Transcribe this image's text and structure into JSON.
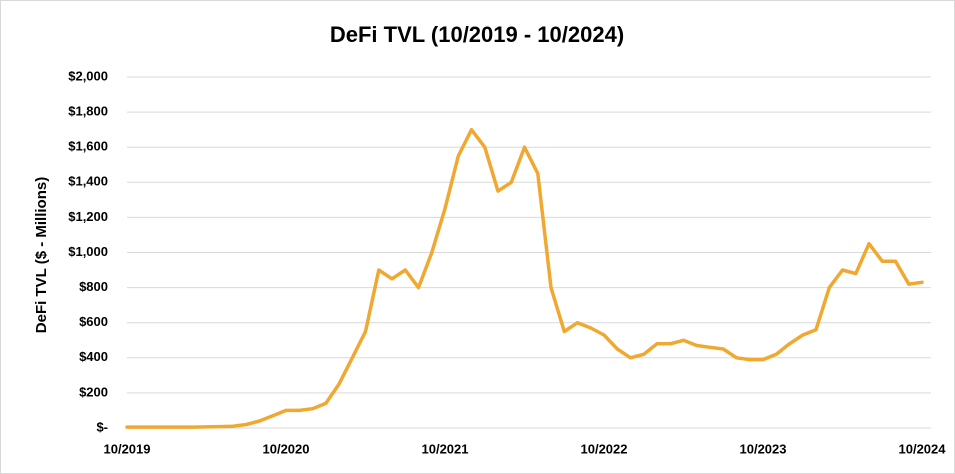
{
  "chart_data": {
    "type": "line",
    "title": "DeFi TVL (10/2019 - 10/2024)",
    "y_label": "DeFi TVL ($ - Millions)",
    "categories": [
      "10/2019",
      null,
      null,
      null,
      null,
      null,
      null,
      null,
      null,
      null,
      null,
      null,
      "10/2020",
      null,
      null,
      null,
      null,
      null,
      null,
      null,
      null,
      null,
      null,
      null,
      "10/2021",
      null,
      null,
      null,
      null,
      null,
      null,
      null,
      null,
      null,
      null,
      null,
      "10/2022",
      null,
      null,
      null,
      null,
      null,
      null,
      null,
      null,
      null,
      null,
      null,
      "10/2023",
      null,
      null,
      null,
      null,
      null,
      null,
      null,
      null,
      null,
      null,
      null,
      "10/2024"
    ],
    "series": [
      {
        "name": "DeFi TVL",
        "color": "#f0a830",
        "values": [
          5,
          5,
          5,
          5,
          5,
          5,
          6,
          8,
          10,
          20,
          40,
          70,
          100,
          100,
          110,
          140,
          250,
          400,
          550,
          900,
          850,
          900,
          800,
          1000,
          1250,
          1550,
          1700,
          1600,
          1350,
          1400,
          1600,
          1450,
          800,
          550,
          600,
          570,
          530,
          450,
          400,
          420,
          480,
          480,
          500,
          470,
          460,
          450,
          400,
          390,
          390,
          420,
          480,
          530,
          560,
          800,
          900,
          880,
          1050,
          950,
          950,
          820,
          830
        ]
      }
    ],
    "ylim": [
      0,
      2000
    ],
    "yticks": [
      {
        "value": 0,
        "label": "$-"
      },
      {
        "value": 200,
        "label": "$200"
      },
      {
        "value": 400,
        "label": "$400"
      },
      {
        "value": 600,
        "label": "$600"
      },
      {
        "value": 800,
        "label": "$800"
      },
      {
        "value": 1000,
        "label": "$1,000"
      },
      {
        "value": 1200,
        "label": "$1,200"
      },
      {
        "value": 1400,
        "label": "$1,400"
      },
      {
        "value": 1600,
        "label": "$1,600"
      },
      {
        "value": 1800,
        "label": "$1,800"
      },
      {
        "value": 2000,
        "label": "$2,000"
      }
    ],
    "grid": true
  }
}
